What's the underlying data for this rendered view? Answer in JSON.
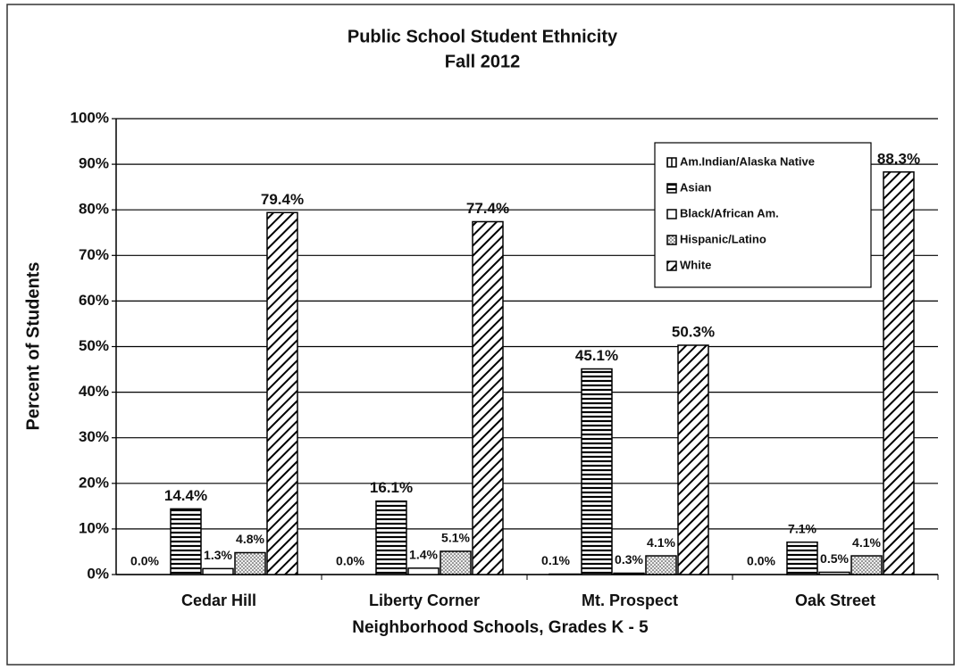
{
  "chart_data": {
    "type": "bar",
    "title": "Public School Student Ethnicity",
    "subtitle": "Fall 2012",
    "xlabel": "Neighborhood Schools, Grades K - 5",
    "ylabel": "Percent of Students",
    "categories": [
      "Cedar Hill",
      "Liberty Corner",
      "Mt. Prospect",
      "Oak Street"
    ],
    "series": [
      {
        "name": "Am.Indian/Alaska Native",
        "color": "#000000",
        "pattern": "vertical",
        "values": [
          0.0,
          0.0,
          0.1,
          0.0
        ],
        "value_labels": [
          "0.0%",
          "0.0%",
          "0.1%",
          "0.0%"
        ]
      },
      {
        "name": "Asian",
        "color": "#000000",
        "pattern": "horizontal",
        "values": [
          14.4,
          16.1,
          45.1,
          7.1
        ],
        "value_labels": [
          "14.4%",
          "16.1%",
          "45.1%",
          "7.1%"
        ]
      },
      {
        "name": "Black/African Am.",
        "color": "#000000",
        "pattern": "none",
        "values": [
          1.3,
          1.4,
          0.3,
          0.5
        ],
        "value_labels": [
          "1.3%",
          "1.4%",
          "0.3%",
          "0.5%"
        ]
      },
      {
        "name": "Hispanic/Latino",
        "color": "#000000",
        "pattern": "dots",
        "values": [
          4.8,
          5.1,
          4.1,
          4.1
        ],
        "value_labels": [
          "4.8%",
          "5.1%",
          "4.1%",
          "4.1%"
        ]
      },
      {
        "name": "White",
        "color": "#000000",
        "pattern": "diagonal",
        "values": [
          79.4,
          77.4,
          50.3,
          88.3
        ],
        "value_labels": [
          "79.4%",
          "77.4%",
          "50.3%",
          "88.3%"
        ]
      }
    ],
    "ylim": [
      0,
      100
    ],
    "yticks": [
      {
        "value": 0,
        "label": "0%"
      },
      {
        "value": 10,
        "label": "10%"
      },
      {
        "value": 20,
        "label": "20%"
      },
      {
        "value": 30,
        "label": "30%"
      },
      {
        "value": 40,
        "label": "40%"
      },
      {
        "value": 50,
        "label": "50%"
      },
      {
        "value": 60,
        "label": "60%"
      },
      {
        "value": 70,
        "label": "70%"
      },
      {
        "value": 80,
        "label": "80%"
      },
      {
        "value": 90,
        "label": "90%"
      },
      {
        "value": 100,
        "label": "100%"
      }
    ],
    "grid": true,
    "legend": "upper right"
  }
}
